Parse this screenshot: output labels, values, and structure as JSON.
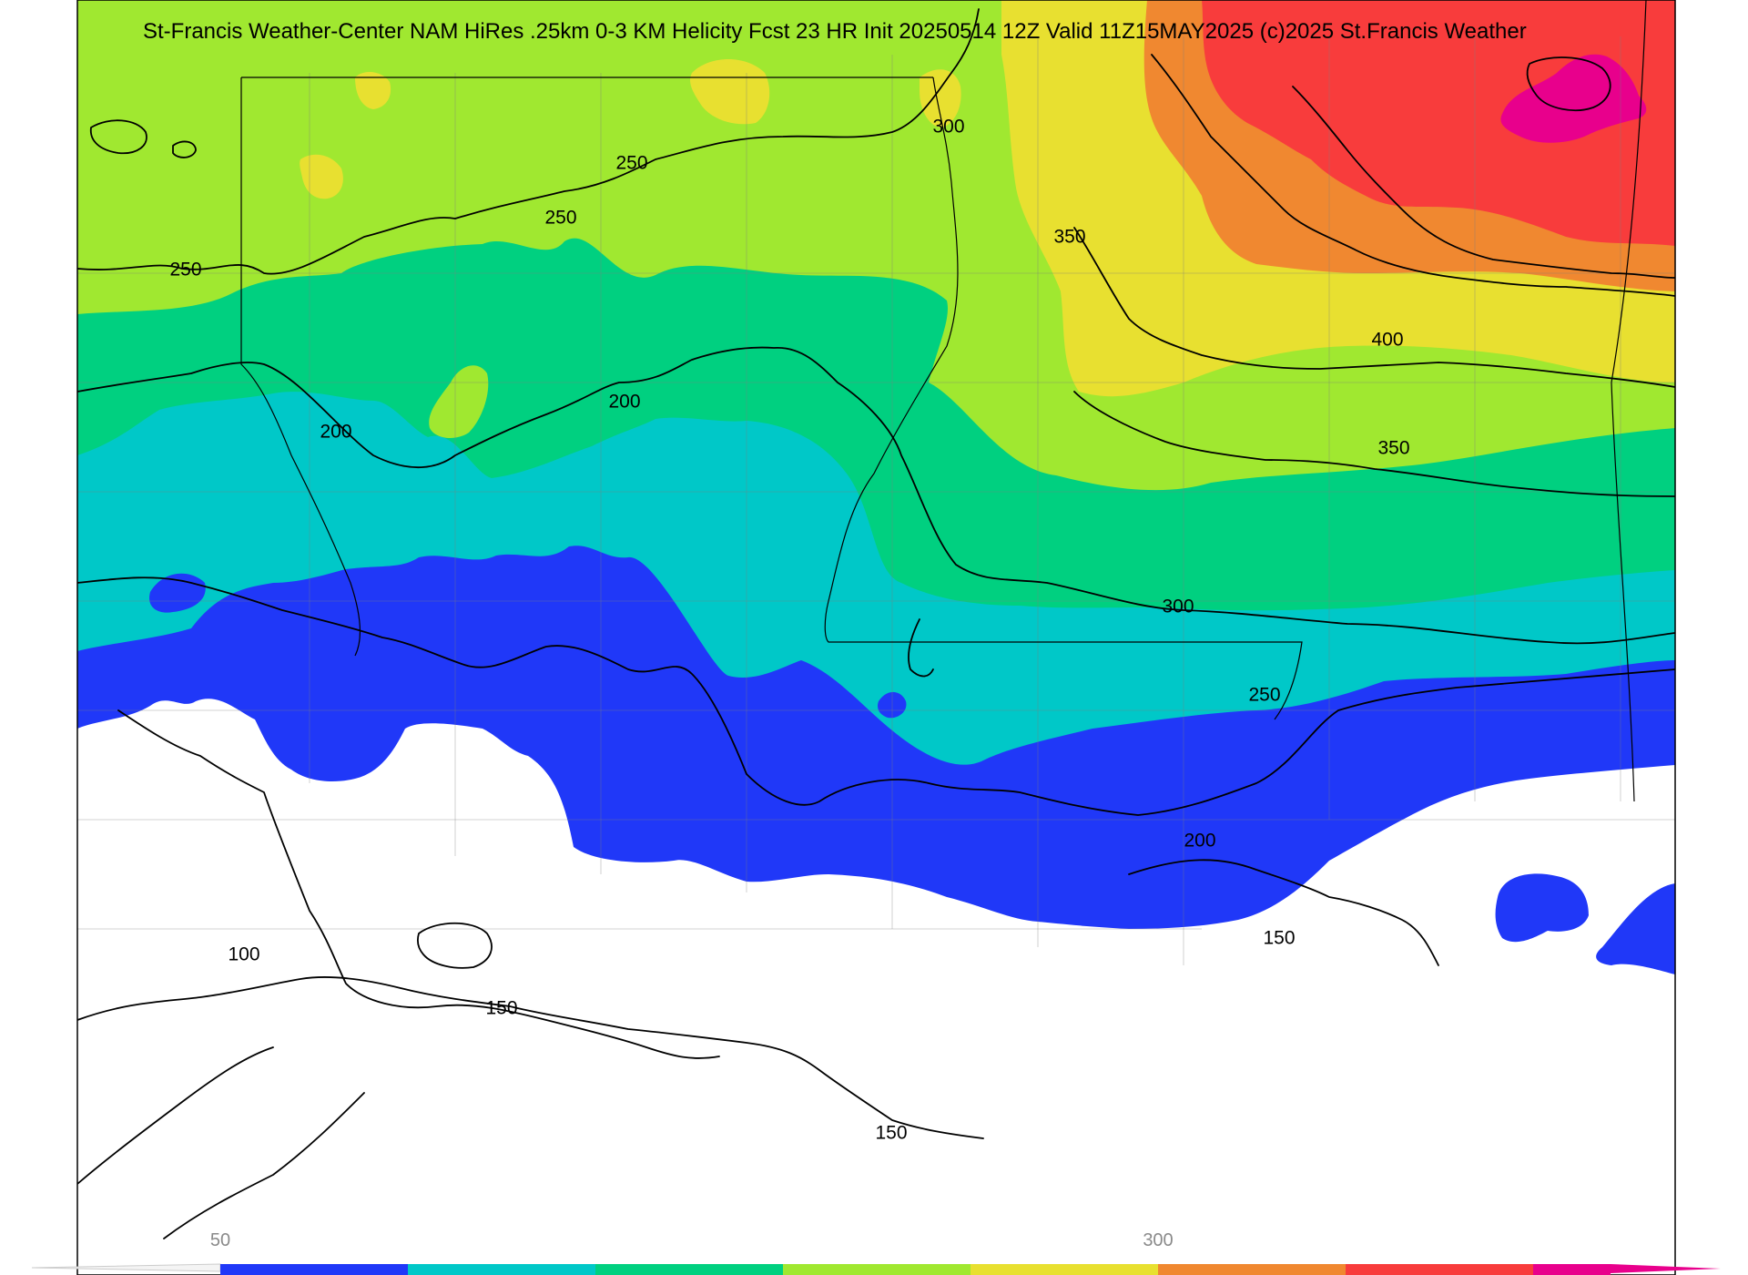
{
  "title": "St-Francis Weather-Center NAM HiRes .25km 0-3 KM Helicity Fcst 23 HR Init 20250514 12Z  Valid 11Z15MAY2025    (c)2025 St.Francis Weather",
  "colors": {
    "c50_100": "#2038f8",
    "c100_150": "#00c8c8",
    "c150_200": "#00d080",
    "c200_250": "#a0e830",
    "c250_300": "#e8e030",
    "c300_350": "#f08830",
    "c350_400": "#f83c3c",
    "c400_plus": "#e8008c",
    "map_bg": "#ffffff",
    "contour": "#000000",
    "county_lines": "#7f7f7f"
  },
  "colorbar": {
    "labels": [
      {
        "text": "50"
      },
      {
        "text": "300"
      }
    ]
  },
  "contour_labels": [
    {
      "text": "300"
    },
    {
      "text": "250"
    },
    {
      "text": "250"
    },
    {
      "text": "250"
    },
    {
      "text": "350"
    },
    {
      "text": "400"
    },
    {
      "text": "200"
    },
    {
      "text": "200"
    },
    {
      "text": "350"
    },
    {
      "text": "300"
    },
    {
      "text": "250"
    },
    {
      "text": "200"
    },
    {
      "text": "150"
    },
    {
      "text": "100"
    },
    {
      "text": "150"
    },
    {
      "text": "150"
    }
  ]
}
